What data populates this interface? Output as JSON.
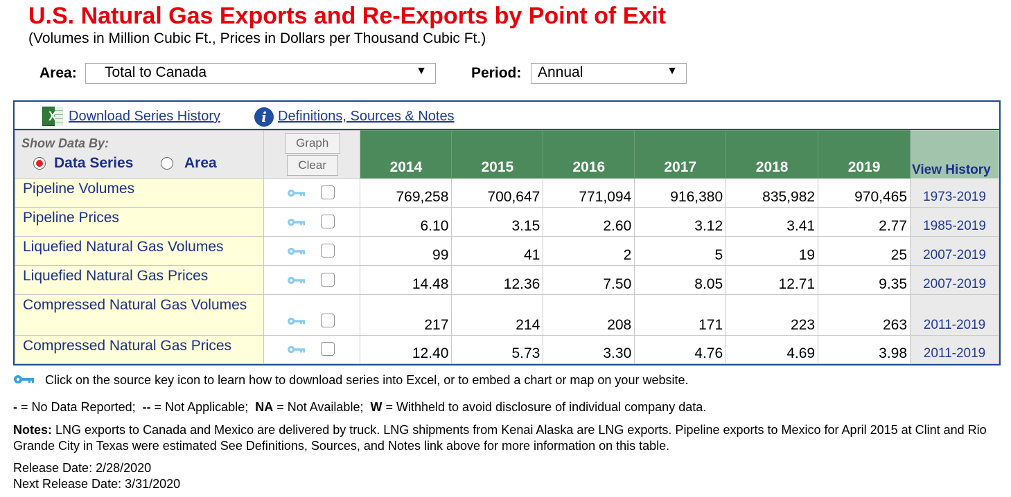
{
  "page": {
    "title": "U.S. Natural Gas Exports and Re-Exports by Point of Exit",
    "subtitle": "(Volumes in Million Cubic Ft., Prices in Dollars per Thousand Cubic Ft.)"
  },
  "filters": {
    "area_label": "Area:",
    "area_value": "Total to Canada",
    "period_label": "Period:",
    "period_value": "Annual"
  },
  "toolbar": {
    "download_label": "Download Series History",
    "definitions_label": "Definitions, Sources & Notes"
  },
  "controls": {
    "show_by_label": "Show Data By:",
    "data_series_label": "Data Series",
    "area_label": "Area",
    "graph_button": "Graph",
    "clear_button": "Clear",
    "selected": "Data Series"
  },
  "table": {
    "years": [
      "2014",
      "2015",
      "2016",
      "2017",
      "2018",
      "2019"
    ],
    "view_history_label": "View History",
    "rows": [
      {
        "label": "Pipeline Volumes",
        "values": [
          "769,258",
          "700,647",
          "771,094",
          "916,380",
          "835,982",
          "970,465"
        ],
        "history": "1973-2019"
      },
      {
        "label": "Pipeline Prices",
        "values": [
          "6.10",
          "3.15",
          "2.60",
          "3.12",
          "3.41",
          "2.77"
        ],
        "history": "1985-2019"
      },
      {
        "label": "Liquefied Natural Gas Volumes",
        "values": [
          "99",
          "41",
          "2",
          "5",
          "19",
          "25"
        ],
        "history": "2007-2019"
      },
      {
        "label": "Liquefied Natural Gas Prices",
        "values": [
          "14.48",
          "12.36",
          "7.50",
          "8.05",
          "12.71",
          "9.35"
        ],
        "history": "2007-2019"
      },
      {
        "label": "Compressed Natural Gas Volumes",
        "values": [
          "217",
          "214",
          "208",
          "171",
          "223",
          "263"
        ],
        "history": "2011-2019"
      },
      {
        "label": "Compressed Natural Gas Prices",
        "values": [
          "12.40",
          "5.73",
          "3.30",
          "4.76",
          "4.69",
          "3.98"
        ],
        "history": "2011-2019"
      }
    ]
  },
  "footer": {
    "key_note": "Click on the source key icon to learn how to download series into Excel, or to embed a chart or map on your website.",
    "legend_items": [
      {
        "sym": "-",
        "text": " = No Data Reported;  "
      },
      {
        "sym": "--",
        "text": " = Not Applicable;  "
      },
      {
        "sym": "NA",
        "text": " = Not Available;  "
      },
      {
        "sym": "W",
        "text": " = Withheld to avoid disclosure of individual company data."
      }
    ],
    "notes_label": "Notes:",
    "notes_text": " LNG exports to Canada and Mexico are delivered by truck. LNG shipments from Kenai Alaska are LNG exports. Pipeline exports to Mexico for April 2015 at Clint and Rio Grande City in Texas were estimated  See Definitions, Sources, and Notes link above for more information on this table.",
    "release_date": "Release Date: 2/28/2020",
    "next_release_date": "Next Release Date: 3/31/2020"
  },
  "colors": {
    "title": "#e8000a",
    "header_green": "#4d8a5b",
    "link_blue": "#1f3a93",
    "row_label_bg": "#ffffd9",
    "frame_border": "#1f4b8d"
  }
}
